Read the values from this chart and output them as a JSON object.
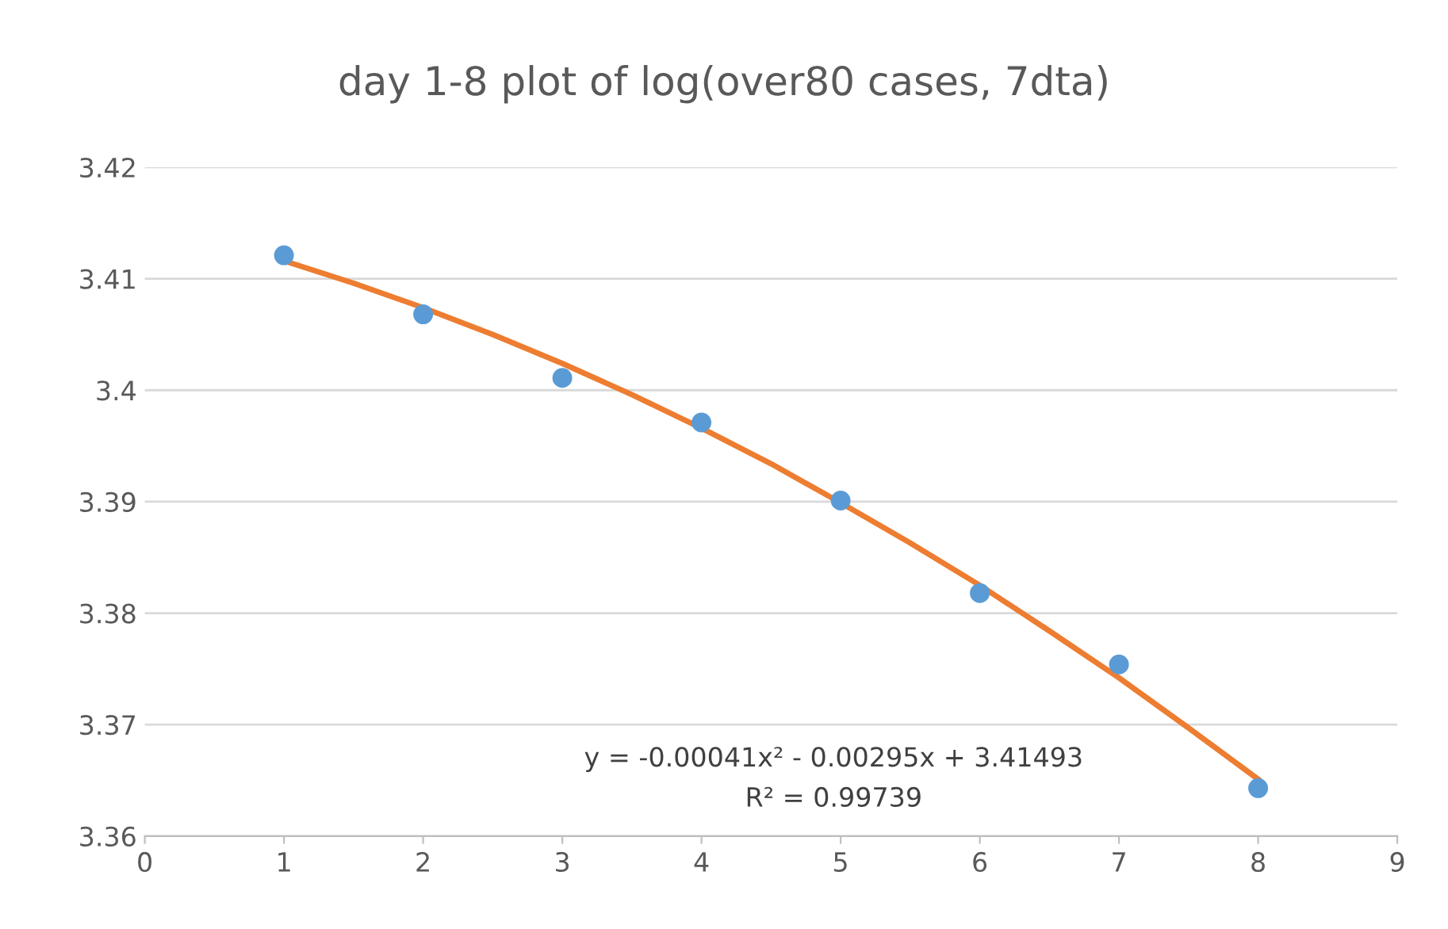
{
  "chart_data": {
    "type": "scatter",
    "title": "day 1-8 plot of log(over80 cases, 7dta)",
    "series": [
      {
        "color": "#5b9bd5",
        "marker": "circle",
        "x": [
          1,
          2,
          3,
          4,
          5,
          6,
          7,
          8
        ],
        "values": [
          3.4121,
          3.4068,
          3.4011,
          3.3971,
          3.3901,
          3.3818,
          3.3754,
          3.3643
        ]
      },
      {
        "type": "line",
        "color": "#ed7d31",
        "x": [
          1,
          1.5,
          2,
          2.5,
          3,
          3.5,
          4,
          4.5,
          5,
          5.5,
          6,
          6.5,
          7,
          7.5,
          8
        ],
        "values": [
          3.4116,
          3.4096,
          3.4074,
          3.405,
          3.4024,
          3.3996,
          3.3966,
          3.3934,
          3.3899,
          3.3863,
          3.3825,
          3.3784,
          3.3742,
          3.3697,
          3.3651
        ]
      }
    ],
    "annotations": [
      "y = -0.00041x² - 0.00295x + 3.41493",
      "R² = 0.99739"
    ],
    "xlim": [
      0,
      9
    ],
    "xticks": [
      0,
      1,
      2,
      3,
      4,
      5,
      6,
      7,
      8,
      9
    ],
    "ylim": [
      3.36,
      3.42
    ],
    "yticks": [
      3.36,
      3.37,
      3.38,
      3.39,
      3.4,
      3.41,
      3.42
    ],
    "grid": "y",
    "legend": false
  }
}
